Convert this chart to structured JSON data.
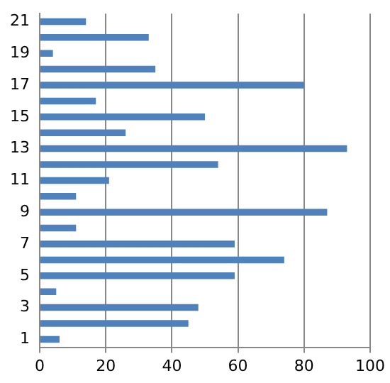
{
  "chart_data": {
    "type": "bar",
    "orientation": "horizontal",
    "categories": [
      "21",
      null,
      "19",
      null,
      "17",
      null,
      "15",
      null,
      "13",
      null,
      "11",
      null,
      "9",
      null,
      "7",
      null,
      "5",
      null,
      "3",
      null,
      "1"
    ],
    "values": [
      14,
      33,
      4,
      35,
      80,
      17,
      50,
      26,
      93,
      54,
      21,
      11,
      87,
      11,
      59,
      74,
      59,
      5,
      48,
      45,
      6
    ],
    "color": "#4f81bd",
    "xlim": [
      0,
      100
    ],
    "xticks": [
      0,
      20,
      40,
      60,
      80,
      100
    ],
    "grid": "x",
    "legend": false
  }
}
